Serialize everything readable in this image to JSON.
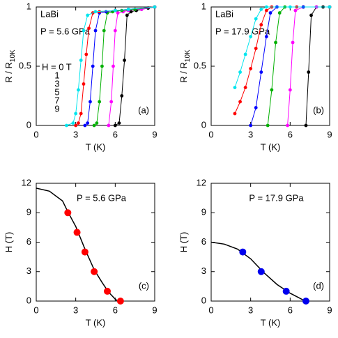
{
  "chart_data": [
    {
      "type": "line",
      "xlabel": "T (K)",
      "ylabel": "R / R",
      "ylabel_sub": "10K",
      "annotations": [
        "LaBi",
        "P = 5.6 GPa"
      ],
      "panel_label": "(a)",
      "xlim": [
        0,
        9
      ],
      "xticks": [
        0,
        3,
        6,
        9
      ],
      "ylim": [
        0,
        1
      ],
      "yticks": [
        0,
        0.5,
        1
      ],
      "series": [
        {
          "name": "H = 0 T",
          "color": "#000000",
          "x": [
            6.0,
            6.3,
            6.5,
            6.7,
            6.9,
            7.2,
            7.6,
            8.0,
            8.5,
            9.0
          ],
          "values": [
            0,
            0.02,
            0.25,
            0.55,
            0.93,
            0.96,
            0.97,
            0.98,
            0.99,
            1.0
          ]
        },
        {
          "name": "1",
          "color": "#ff00ff",
          "x": [
            5.5,
            5.7,
            5.85,
            6.0,
            6.2,
            6.6,
            7.0,
            7.5,
            8.0,
            9.0
          ],
          "values": [
            0,
            0.2,
            0.5,
            0.8,
            0.95,
            0.96,
            0.97,
            0.98,
            0.98,
            1.0
          ]
        },
        {
          "name": "3",
          "color": "#00b000",
          "x": [
            4.4,
            4.6,
            4.8,
            5.0,
            5.15,
            5.4,
            5.8,
            6.5,
            7.5,
            9.0
          ],
          "values": [
            0,
            0.02,
            0.2,
            0.5,
            0.8,
            0.95,
            0.96,
            0.97,
            0.98,
            1.0
          ]
        },
        {
          "name": "5",
          "color": "#0000ff",
          "x": [
            3.7,
            3.9,
            4.1,
            4.3,
            4.5,
            4.8,
            5.3,
            6.0,
            7.0,
            9.0
          ],
          "values": [
            0,
            0.02,
            0.2,
            0.5,
            0.8,
            0.95,
            0.96,
            0.97,
            0.98,
            1.0
          ]
        },
        {
          "name": "7",
          "color": "#ff0000",
          "x": [
            3.0,
            3.2,
            3.4,
            3.6,
            3.8,
            4.0,
            4.3,
            4.8,
            6.0,
            9.0
          ],
          "values": [
            0,
            0.02,
            0.1,
            0.35,
            0.6,
            0.82,
            0.95,
            0.96,
            0.97,
            1.0
          ]
        },
        {
          "name": "9",
          "color": "#00e5ee",
          "x": [
            2.3,
            2.8,
            3.0,
            3.2,
            3.4,
            3.6,
            3.9,
            4.5,
            6.0,
            7.0,
            9.0
          ],
          "values": [
            0,
            0.02,
            0.1,
            0.3,
            0.55,
            0.8,
            0.93,
            0.96,
            0.97,
            0.98,
            1.0
          ]
        }
      ]
    },
    {
      "type": "line",
      "xlabel": "T (K)",
      "ylabel": "R / R",
      "ylabel_sub": "10K",
      "annotations": [
        "LaBi",
        "P = 17.9 GPa"
      ],
      "panel_label": "(b)",
      "xlim": [
        0,
        9
      ],
      "xticks": [
        0,
        3,
        6,
        9
      ],
      "ylim": [
        0,
        1
      ],
      "yticks": [
        0,
        0.5,
        1
      ],
      "series": [
        {
          "name": "0",
          "color": "#000000",
          "x": [
            7.2,
            7.4,
            7.6,
            8.0,
            8.5,
            9.0
          ],
          "values": [
            0,
            0.45,
            0.93,
            1.0,
            1.0,
            1.0
          ]
        },
        {
          "name": "1",
          "color": "#ff00ff",
          "x": [
            5.8,
            6.0,
            6.2,
            6.4,
            7.0,
            8.0,
            9.0
          ],
          "values": [
            0,
            0.3,
            0.7,
            0.97,
            1.0,
            1.0,
            1.0
          ]
        },
        {
          "name": "3",
          "color": "#00b000",
          "x": [
            4.3,
            4.6,
            4.9,
            5.2,
            5.6,
            7.0,
            9.0
          ],
          "values": [
            0,
            0.3,
            0.7,
            0.95,
            1.0,
            1.0,
            1.0
          ]
        },
        {
          "name": "5",
          "color": "#0000ff",
          "x": [
            3.0,
            3.4,
            3.8,
            4.2,
            4.5,
            5.0,
            7.0,
            9.0
          ],
          "values": [
            0,
            0.15,
            0.45,
            0.75,
            0.95,
            1.0,
            1.0,
            1.0
          ]
        },
        {
          "name": "7",
          "color": "#ff0000",
          "x": [
            1.8,
            2.2,
            2.6,
            3.0,
            3.4,
            3.8,
            4.2,
            4.6,
            6.5,
            9.0
          ],
          "values": [
            0.1,
            0.2,
            0.32,
            0.48,
            0.65,
            0.85,
            0.97,
            1.0,
            1.0,
            1.0
          ]
        },
        {
          "name": "9",
          "color": "#00e5ee",
          "x": [
            1.8,
            2.2,
            2.6,
            3.0,
            3.4,
            3.8,
            4.2,
            6.0,
            9.0
          ],
          "values": [
            0.32,
            0.45,
            0.6,
            0.75,
            0.9,
            0.98,
            1.0,
            1.0,
            1.0
          ]
        }
      ]
    },
    {
      "type": "scatter",
      "xlabel": "T (K)",
      "ylabel": "H (T)",
      "annotations": [
        "P = 5.6 GPa"
      ],
      "panel_label": "(c)",
      "xlim": [
        0,
        9
      ],
      "xticks": [
        0,
        3,
        6,
        9
      ],
      "ylim": [
        0,
        12
      ],
      "yticks": [
        0,
        3,
        6,
        9,
        12
      ],
      "color": "#ff0000",
      "x": [
        2.4,
        3.1,
        3.7,
        4.4,
        5.4,
        6.4
      ],
      "values": [
        9,
        7,
        5,
        3,
        1,
        0
      ],
      "fit": {
        "color": "#000000",
        "x": [
          0,
          1,
          2,
          2.4,
          3,
          3.7,
          4.4,
          5,
          5.5,
          6,
          6.2
        ],
        "values": [
          11.5,
          11.2,
          10.2,
          9.1,
          7.6,
          5.3,
          3.2,
          1.9,
          0.9,
          0.2,
          0
        ]
      }
    },
    {
      "type": "scatter",
      "xlabel": "T (K)",
      "ylabel": "H (T)",
      "annotations": [
        "P = 17.9 GPa"
      ],
      "panel_label": "(d)",
      "xlim": [
        0,
        9
      ],
      "xticks": [
        0,
        3,
        6,
        9
      ],
      "ylim": [
        0,
        12
      ],
      "yticks": [
        0,
        3,
        6,
        9,
        12
      ],
      "color": "#0000ee",
      "x": [
        2.4,
        3.8,
        5.7,
        7.2
      ],
      "values": [
        5,
        3,
        1,
        0
      ],
      "fit": {
        "color": "#000000",
        "x": [
          0,
          1,
          2,
          3,
          4,
          5,
          6,
          7,
          7.3
        ],
        "values": [
          6,
          5.8,
          5.3,
          4.3,
          2.9,
          1.7,
          0.8,
          0.1,
          0
        ]
      }
    }
  ]
}
